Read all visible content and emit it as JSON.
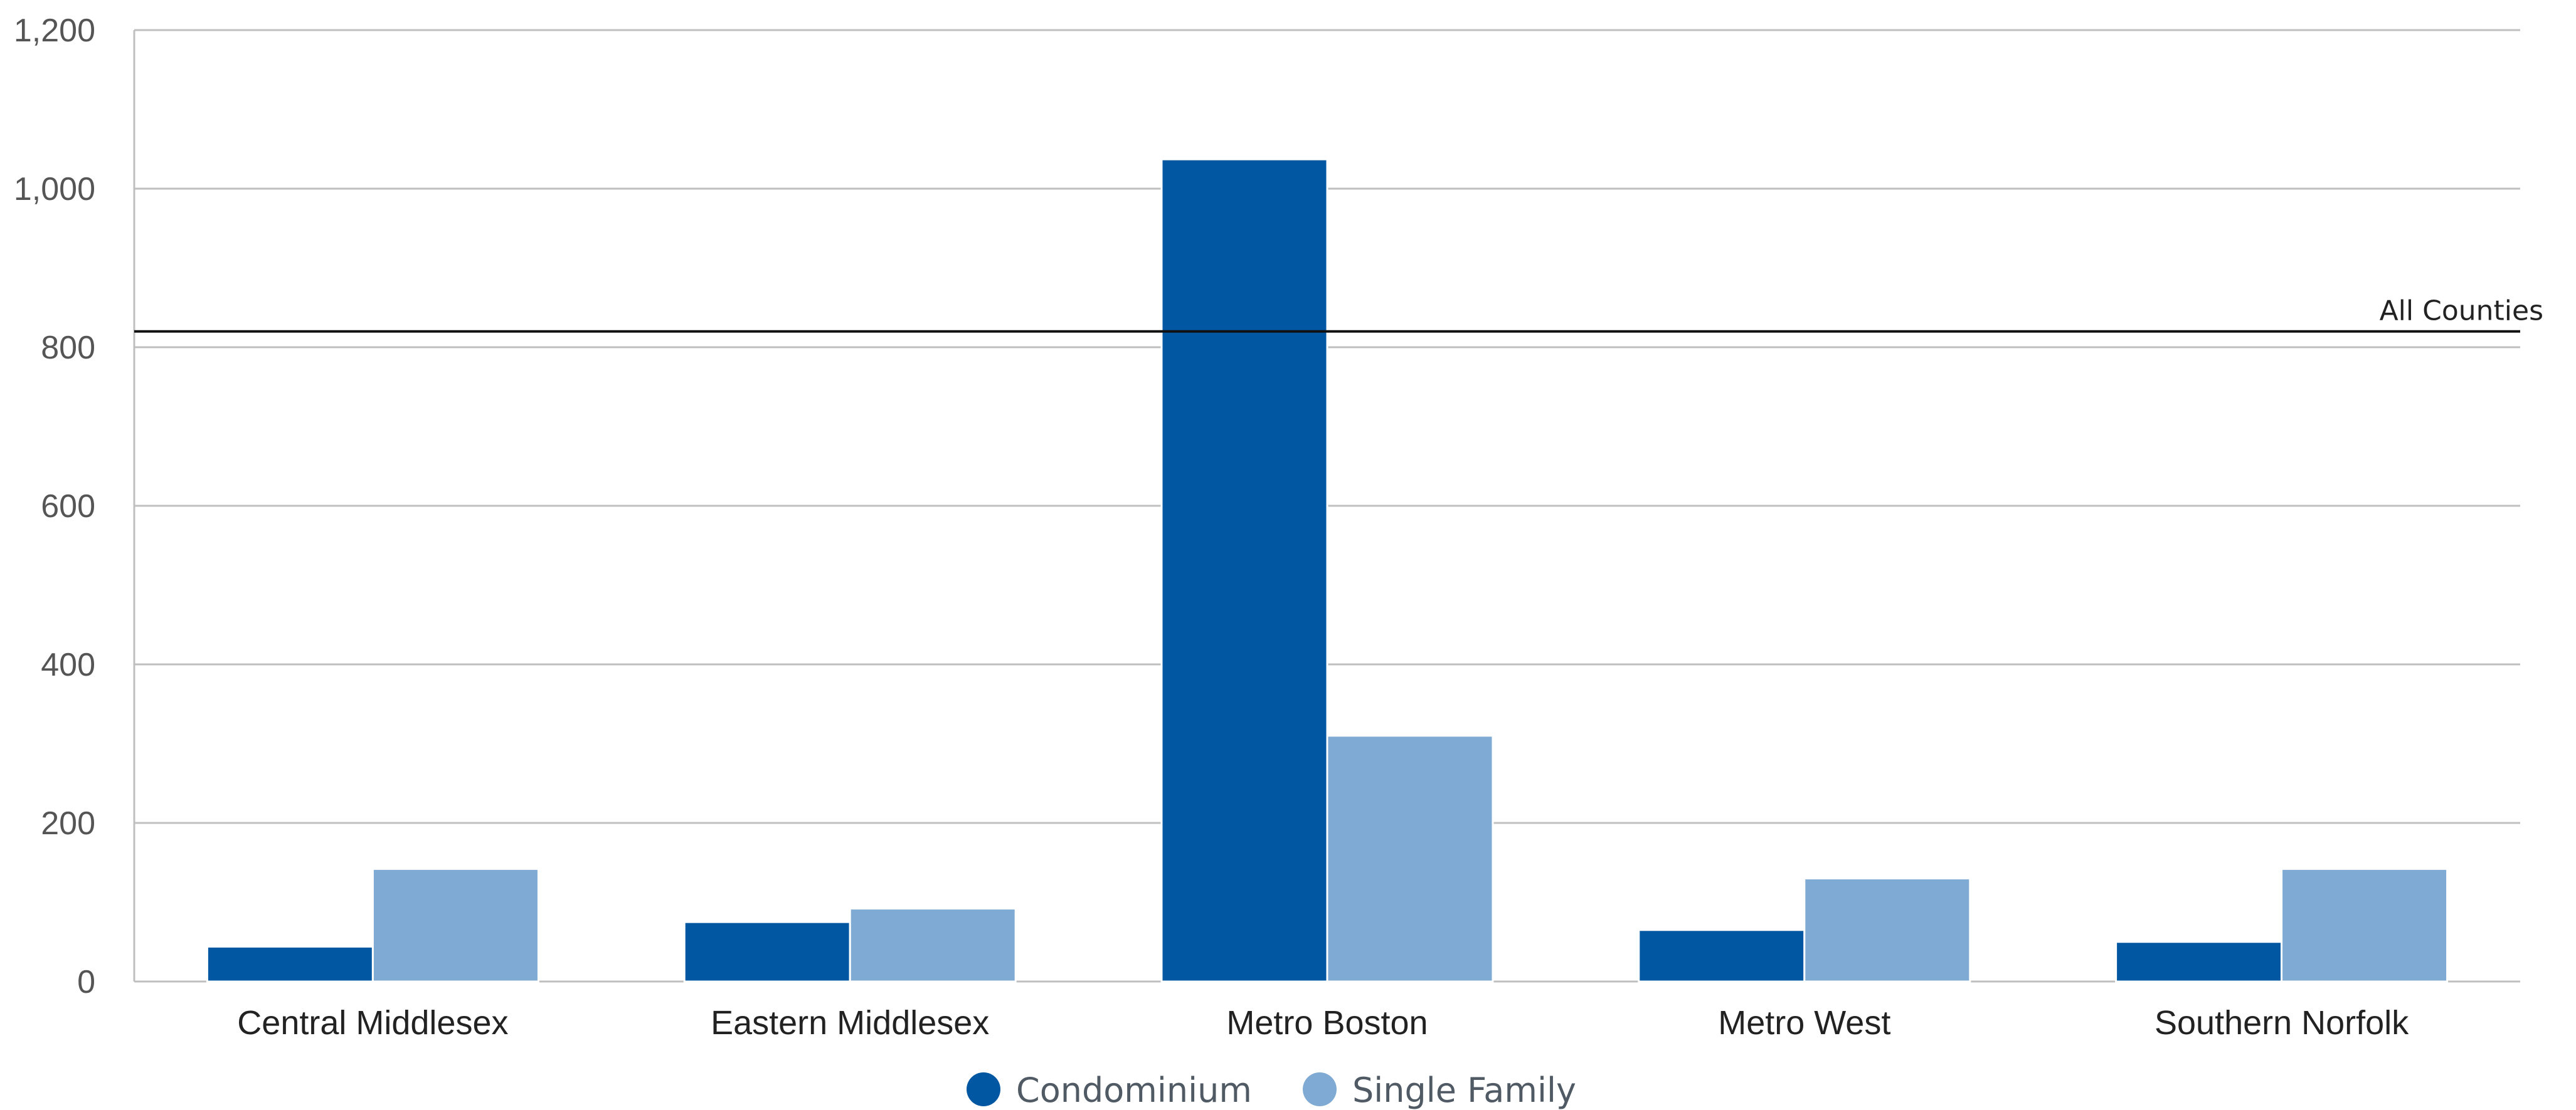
{
  "chart_data": {
    "type": "bar",
    "categories": [
      "Central Middlesex",
      "Eastern Middlesex",
      "Metro Boston",
      "Metro West",
      "Southern Norfolk"
    ],
    "series": [
      {
        "name": "Condominium",
        "color": "#0257a3",
        "values": [
          44,
          75,
          1037,
          65,
          50
        ]
      },
      {
        "name": "Single Family",
        "color": "#7eaad4",
        "values": [
          142,
          92,
          310,
          130,
          142
        ]
      }
    ],
    "yticks": [
      "0",
      "200",
      "400",
      "600",
      "800",
      "1,000",
      "1,200"
    ],
    "ylim": [
      0,
      1200
    ],
    "grid": true,
    "legend_position": "bottom-center",
    "reference_line": {
      "label": "All Counties",
      "value": 820
    },
    "title": "",
    "xlabel": "",
    "ylabel": ""
  }
}
